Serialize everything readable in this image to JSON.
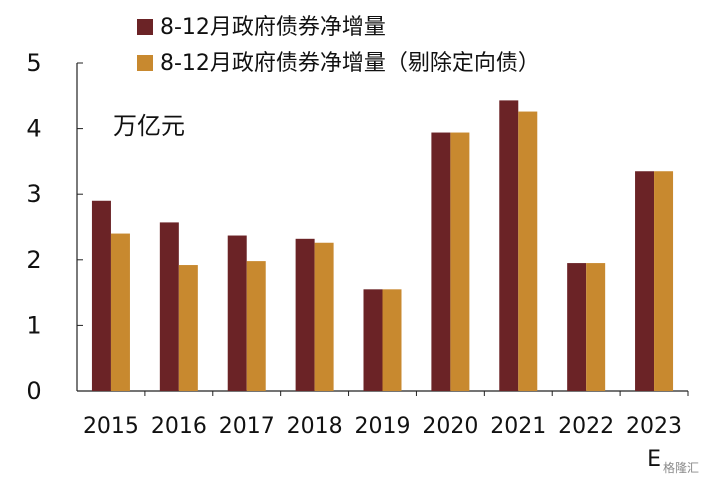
{
  "chart_data": {
    "type": "bar",
    "categories": [
      "2015",
      "2016",
      "2017",
      "2018",
      "2019",
      "2020",
      "2021",
      "2022",
      "2023"
    ],
    "category_suffix": {
      "2023": "E"
    },
    "series": [
      {
        "name": "8-12月政府债券净增量",
        "values": [
          2.9,
          2.57,
          2.37,
          2.32,
          1.55,
          3.94,
          4.43,
          1.95,
          3.35
        ],
        "color": "#6b2326"
      },
      {
        "name": "8-12月政府债券净增量（剔除定向债）",
        "values": [
          2.4,
          1.92,
          1.98,
          2.26,
          1.55,
          3.94,
          4.26,
          1.95,
          3.35
        ],
        "color": "#c8892f"
      }
    ],
    "ylim": [
      0,
      5
    ],
    "yticks": [
      "0",
      "1",
      "2",
      "3",
      "4",
      "5"
    ],
    "unit_label": "万亿元",
    "legend_position": "top",
    "grid": false
  },
  "watermark": "格隆汇"
}
